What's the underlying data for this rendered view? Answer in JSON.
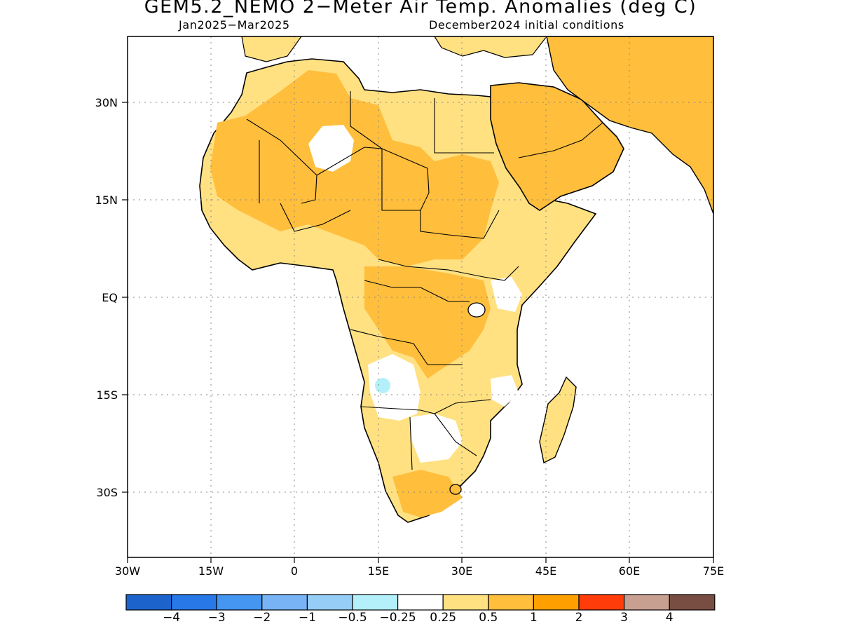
{
  "title": "GEM5.2_NEMO 2−Meter Air Temp. Anomalies (deg C)",
  "subtitle_left": "Jan2025−Mar2025",
  "subtitle_right": "December2024 initial conditions",
  "map": {
    "region": "Africa and Middle East",
    "lon_range": [
      -30,
      75
    ],
    "lat_range": [
      -38,
      42
    ],
    "x_ticks": [
      "30W",
      "15W",
      "0",
      "15E",
      "30E",
      "45E",
      "60E",
      "75E"
    ],
    "y_ticks": [
      "30N",
      "15N",
      "EQ",
      "15S",
      "30S"
    ],
    "grid": "dotted",
    "land_fill": "light orange shades indicating positive anomalies",
    "ocean_fill": "white"
  },
  "colorbar": {
    "colors": [
      "#1c64cc",
      "#2878e8",
      "#4496f0",
      "#78b4f5",
      "#96cdf7",
      "#b4f0fa",
      "#ffffff",
      "#ffe182",
      "#ffbe3c",
      "#ffa000",
      "#ff3c0a",
      "#c8a092",
      "#784e42"
    ],
    "labels": [
      "−4",
      "−3",
      "−2",
      "−1",
      "−0.5",
      "−0.25",
      "0.25",
      "0.5",
      "1",
      "2",
      "3",
      "4"
    ]
  }
}
